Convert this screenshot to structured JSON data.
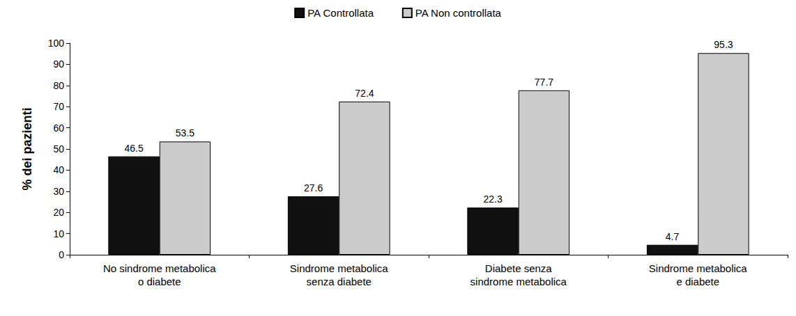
{
  "chart_data": {
    "type": "bar",
    "categories": [
      "No sindrome metabolica\no diabete",
      "Sindrome metabolica\nsenza diabete",
      "Diabete senza\nsindrome metabolica",
      "Sindrome metabolica\ne diabete"
    ],
    "series": [
      {
        "name": "PA Controllata",
        "color": "#111111",
        "values": [
          46.5,
          27.6,
          22.3,
          4.7
        ]
      },
      {
        "name": "PA Non controllata",
        "color": "#cccccc",
        "values": [
          53.5,
          72.4,
          77.7,
          95.3
        ]
      }
    ],
    "ylabel": "% dei pazienti",
    "ylim": [
      0,
      100
    ],
    "yticks": [
      0,
      10,
      20,
      30,
      40,
      50,
      60,
      70,
      80,
      90,
      100
    ],
    "grid": false,
    "legend": "top",
    "data_labels": true
  }
}
